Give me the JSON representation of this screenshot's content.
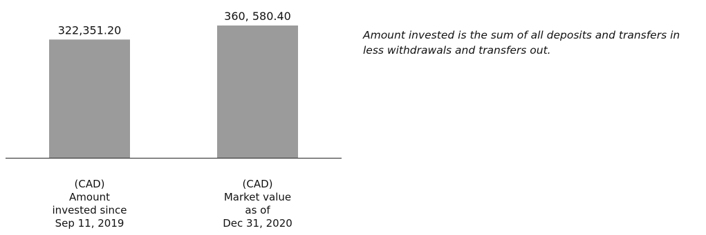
{
  "chart_data": {
    "type": "bar",
    "categories": [
      [
        "(CAD)",
        "Amount",
        "invested since",
        "Sep 11, 2019"
      ],
      [
        "(CAD)",
        "Market value",
        "as of",
        "Dec 31, 2020"
      ]
    ],
    "values": [
      322351.2,
      360580.4
    ],
    "data_labels": [
      "322,351.20",
      "360, 580.40"
    ],
    "bar_color": "#9b9b9b",
    "axis_color": "#222222",
    "grid": false,
    "legend": "none",
    "ylim": [
      0,
      360580.4
    ]
  },
  "note": {
    "lines": [
      "Amount invested is the sum of all deposits and transfers in",
      "less withdrawals and transfers out."
    ]
  }
}
